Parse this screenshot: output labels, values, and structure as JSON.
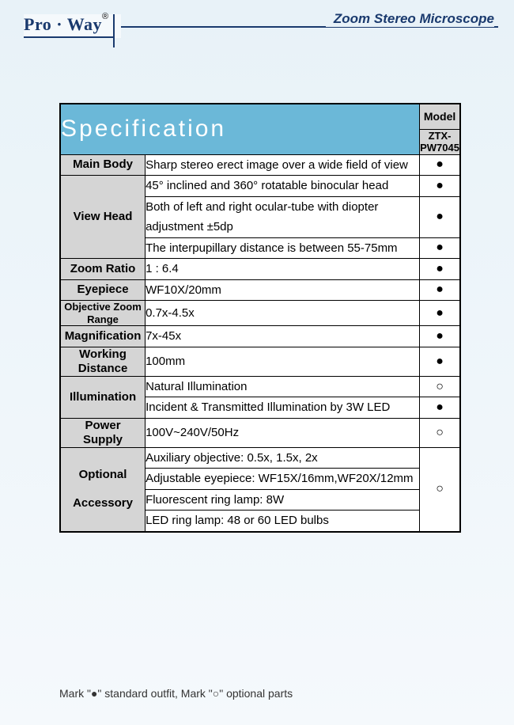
{
  "page": {
    "logo": "Pro · Way",
    "title": "Zoom Stereo Microscope",
    "spec_title": "Specification",
    "legend": "Mark \"●\" standard outfit,  Mark \"○\" optional parts"
  },
  "model": {
    "header": "Model",
    "value": "ZTX-PW7045"
  },
  "marks": {
    "filled": "●",
    "open": "○"
  },
  "colors": {
    "header_bg": "#6bb8d8",
    "cat_bg": "#d5d5d5",
    "brand": "#1a3a6e",
    "page_bg_top": "#e8f2f8"
  },
  "rows": [
    {
      "category": "Main Body",
      "items": [
        {
          "text": "Sharp stereo erect image over a wide field of view",
          "mark": "●"
        }
      ]
    },
    {
      "category": "View Head",
      "items": [
        {
          "text": "45° inclined and 360° rotatable binocular head",
          "mark": "●"
        },
        {
          "text": "Both of left and right ocular-tube with diopter adjustment ±5dp",
          "mark": "●"
        },
        {
          "text": "The interpupillary distance is between 55-75mm",
          "mark": "●"
        }
      ]
    },
    {
      "category": "Zoom Ratio",
      "items": [
        {
          "text": "1 : 6.4",
          "mark": "●"
        }
      ]
    },
    {
      "category": "Eyepiece",
      "items": [
        {
          "text": "WF10X/20mm",
          "mark": "●"
        }
      ]
    },
    {
      "category": "Objective Zoom Range",
      "small": true,
      "items": [
        {
          "text": "0.7x-4.5x",
          "mark": "●"
        }
      ]
    },
    {
      "category": "Magnification",
      "items": [
        {
          "text": "7x-45x",
          "mark": "●"
        }
      ]
    },
    {
      "category": "Working Distance",
      "items": [
        {
          "text": "100mm",
          "mark": "●"
        }
      ]
    },
    {
      "category": "Illumination",
      "items": [
        {
          "text": "Natural Illumination",
          "mark": "○"
        },
        {
          "text": "Incident & Transmitted Illumination by 3W LED",
          "mark": "●"
        }
      ]
    },
    {
      "category": "Power Supply",
      "items": [
        {
          "text": "100V~240V/50Hz",
          "mark": "○"
        }
      ]
    },
    {
      "category": "Optional Accessory",
      "merged_mark": "○",
      "cat_break": true,
      "items": [
        {
          "text": "Auxiliary objective: 0.5x, 1.5x, 2x"
        },
        {
          "text": "Adjustable eyepiece: WF15X/16mm,WF20X/12mm"
        },
        {
          "text": "Fluorescent ring lamp: 8W"
        },
        {
          "text": "LED ring lamp: 48 or 60 LED bulbs"
        }
      ]
    }
  ]
}
